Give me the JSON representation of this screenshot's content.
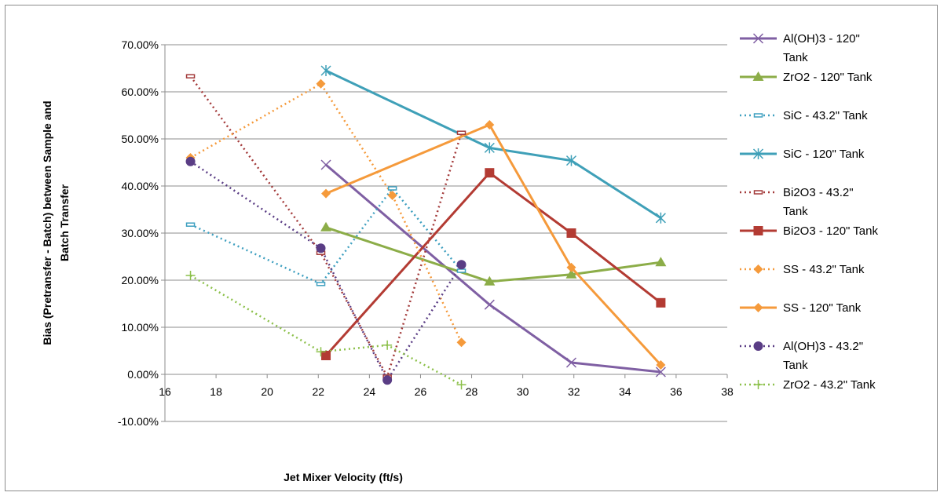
{
  "chart_data": {
    "type": "line",
    "title": "",
    "xlabel": "Jet Mixer Velocity (ft/s)",
    "ylabel_lines": [
      "Bias (Pretransfer - Batch) between Sample and",
      "Batch Transfer"
    ],
    "xlim": [
      16,
      38
    ],
    "ylim": [
      -0.1,
      0.7
    ],
    "x_ticks": [
      16,
      18,
      20,
      22,
      24,
      26,
      28,
      30,
      32,
      34,
      36,
      38
    ],
    "y_ticks": [
      -0.1,
      0.0,
      0.1,
      0.2,
      0.3,
      0.4,
      0.5,
      0.6,
      0.7
    ],
    "y_tick_labels": [
      "-10.00%",
      "0.00%",
      "10.00%",
      "20.00%",
      "30.00%",
      "40.00%",
      "50.00%",
      "60.00%",
      "70.00%"
    ],
    "legend_position": "right",
    "series": [
      {
        "name": "Al(OH)3 - 120\" Tank",
        "color": "#7f5fa3",
        "dash": "solid",
        "marker": "x",
        "x": [
          22.3,
          28.7,
          31.9,
          35.4
        ],
        "y": [
          0.445,
          0.148,
          0.025,
          0.005
        ]
      },
      {
        "name": "ZrO2 - 120\" Tank",
        "color": "#8cad48",
        "dash": "solid",
        "marker": "triangle",
        "x": [
          22.3,
          28.7,
          31.9,
          35.4
        ],
        "y": [
          0.312,
          0.197,
          0.212,
          0.238
        ]
      },
      {
        "name": "SiC - 43.2\" Tank",
        "color": "#3fa0c0",
        "dash": "dotted",
        "marker": "dash",
        "x": [
          17.0,
          22.1,
          24.9,
          27.6
        ],
        "y": [
          0.318,
          0.192,
          0.395,
          0.22
        ]
      },
      {
        "name": "SiC - 120\" Tank",
        "color": "#3fa0b8",
        "dash": "solid",
        "marker": "star",
        "x": [
          22.3,
          28.7,
          31.9,
          35.4
        ],
        "y": [
          0.645,
          0.481,
          0.454,
          0.332
        ]
      },
      {
        "name": "Bi2O3 - 43.2\" Tank",
        "color": "#a33a3a",
        "dash": "dotted",
        "marker": "dash",
        "x": [
          17.0,
          22.1,
          24.7,
          27.6
        ],
        "y": [
          0.633,
          0.258,
          -0.005,
          0.513
        ]
      },
      {
        "name": "Bi2O3 - 120\" Tank",
        "color": "#b33b33",
        "dash": "solid",
        "marker": "square",
        "x": [
          22.3,
          28.7,
          31.9,
          35.4
        ],
        "y": [
          0.04,
          0.428,
          0.3,
          0.152
        ]
      },
      {
        "name": "SS - 43.2\" Tank",
        "color": "#f59a3b",
        "dash": "dotted",
        "marker": "diamond",
        "x": [
          17.0,
          22.1,
          24.9,
          27.6
        ],
        "y": [
          0.46,
          0.617,
          0.38,
          0.068
        ]
      },
      {
        "name": "SS - 120\" Tank",
        "color": "#f59a3b",
        "dash": "solid",
        "marker": "diamond",
        "x": [
          22.3,
          28.7,
          31.9,
          35.4
        ],
        "y": [
          0.384,
          0.53,
          0.227,
          0.02
        ]
      },
      {
        "name": "Al(OH)3 - 43.2\" Tank",
        "color": "#5a3d85",
        "dash": "dotted",
        "marker": "circle",
        "x": [
          17.0,
          22.1,
          24.7,
          27.6
        ],
        "y": [
          0.452,
          0.268,
          -0.012,
          0.233
        ]
      },
      {
        "name": "ZrO2 - 43.2\" Tank",
        "color": "#8cc04a",
        "dash": "dotted",
        "marker": "plus",
        "x": [
          17.0,
          22.1,
          24.7,
          27.6
        ],
        "y": [
          0.21,
          0.048,
          0.062,
          -0.022
        ]
      }
    ]
  }
}
